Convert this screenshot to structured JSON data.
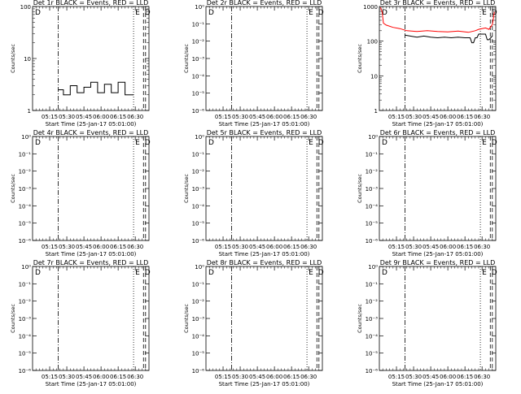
{
  "panels": [
    {
      "title": "Det 1r BLACK = Events, RED = LLD",
      "ylabel": "Counts/sec",
      "xlabel": "Start Time (25-Jan-17 05:01:00)",
      "y_tick_labels": [
        "1",
        "10",
        "100"
      ]
    },
    {
      "title": "Det 2r BLACK = Events, RED = LLD",
      "ylabel": "Counts/sec",
      "xlabel": "Start Time (25-Jan-17 05:01:00)",
      "y_tick_labels": [
        "10⁰",
        "10⁻¹",
        "10⁻²",
        "10⁻³",
        "10⁻⁴",
        "10⁻⁵",
        "10⁻⁶"
      ]
    },
    {
      "title": "Det 3r BLACK = Events, RED = LLD",
      "ylabel": "Counts/sec",
      "xlabel": "Start Time (25-Jan-17 05:01:00)",
      "y_tick_labels": [
        "1",
        "10",
        "100",
        "1000"
      ]
    },
    {
      "title": "Det 4r BLACK = Events, RED = LLD",
      "ylabel": "Counts/sec",
      "xlabel": "Start Time (25-Jan-17 05:01:00)",
      "y_tick_labels": [
        "10⁰",
        "10⁻¹",
        "10⁻²",
        "10⁻³",
        "10⁻⁴",
        "10⁻⁵",
        "10⁻⁶"
      ]
    },
    {
      "title": "Det 5r BLACK = Events, RED = LLD",
      "ylabel": "Counts/sec",
      "xlabel": "Start Time (25-Jan-17 05:01:00)",
      "y_tick_labels": [
        "10⁰",
        "10⁻¹",
        "10⁻²",
        "10⁻³",
        "10⁻⁴",
        "10⁻⁵",
        "10⁻⁶"
      ]
    },
    {
      "title": "Det 6r BLACK = Events, RED = LLD",
      "ylabel": "Counts/sec",
      "xlabel": "Start Time (25-Jan-17 05:01:00)",
      "y_tick_labels": [
        "10⁰",
        "10⁻¹",
        "10⁻²",
        "10⁻³",
        "10⁻⁴",
        "10⁻⁵",
        "10⁻⁶"
      ]
    },
    {
      "title": "Det 7r BLACK = Events, RED = LLD",
      "ylabel": "Counts/sec",
      "xlabel": "Start Time (25-Jan-17 05:01:00)",
      "y_tick_labels": [
        "10⁰",
        "10⁻¹",
        "10⁻²",
        "10⁻³",
        "10⁻⁴",
        "10⁻⁵",
        "10⁻⁶"
      ]
    },
    {
      "title": "Det 8r BLACK = Events, RED = LLD",
      "ylabel": "Counts/sec",
      "xlabel": "Start Time (25-Jan-17 05:01:00)",
      "y_tick_labels": [
        "10⁰",
        "10⁻¹",
        "10⁻²",
        "10⁻³",
        "10⁻⁴",
        "10⁻⁵",
        "10⁻⁶"
      ]
    },
    {
      "title": "Det 9r BLACK = Events, RED = LLD",
      "ylabel": "Counts/sec",
      "xlabel": "Start Time (25-Jan-17 05:01:00)",
      "y_tick_labels": [
        "10⁰",
        "10⁻¹",
        "10⁻²",
        "10⁻³",
        "10⁻⁴",
        "10⁻⁵",
        "10⁻⁶"
      ]
    }
  ],
  "x_tick_labels": [
    "05:15",
    "05:30",
    "05:45",
    "06:00",
    "06:15",
    "06:30"
  ],
  "markers": {
    "left": "D",
    "mid": "E",
    "right": "D"
  },
  "colors": {
    "events": "#000000",
    "lld": "#ff0000"
  },
  "chart_data": [
    {
      "type": "line",
      "title": "Det 1r BLACK = Events, RED = LLD",
      "xlabel": "Start Time (25-Jan-17 05:01:00)",
      "ylabel": "Counts/sec",
      "x_range_min": [
        5.0,
        39.0
      ],
      "y_scale": "log",
      "ylim": [
        1,
        100
      ],
      "vlines_min": [
        {
          "x": 12.5,
          "style": "dash-dot"
        },
        {
          "x": 34.5,
          "style": "dotted"
        },
        {
          "x": 38.0,
          "style": "dashed"
        }
      ],
      "series": [
        {
          "color": "black",
          "x": [
            12.5,
            14,
            14,
            16,
            16,
            18,
            18,
            20,
            20,
            22,
            22,
            24,
            24,
            26,
            26,
            28,
            28,
            30,
            30,
            32,
            32,
            34.5
          ],
          "y": [
            2.5,
            2.5,
            2.0,
            2.0,
            3.0,
            3.0,
            2.2,
            2.2,
            2.8,
            2.8,
            3.5,
            3.5,
            2.2,
            2.2,
            3.2,
            3.2,
            2.2,
            2.2,
            3.5,
            3.5,
            2.0,
            2.0
          ]
        }
      ]
    },
    {
      "type": "line",
      "title": "Det 2r BLACK = Events, RED = LLD",
      "xlabel": "Start Time (25-Jan-17 05:01:00)",
      "ylabel": "Counts/sec",
      "x_range_min": [
        5.0,
        39.0
      ],
      "y_scale": "log",
      "ylim": [
        1e-06,
        1
      ],
      "series": []
    },
    {
      "type": "line",
      "title": "Det 3r BLACK = Events, RED = LLD",
      "xlabel": "Start Time (25-Jan-17 05:01:00)",
      "ylabel": "Counts/sec",
      "x_range_min": [
        5.0,
        39.0
      ],
      "y_scale": "log",
      "ylim": [
        1,
        1000
      ],
      "series": [
        {
          "color": "red",
          "x": [
            5.3,
            5.8,
            6.2,
            7,
            9,
            11,
            13,
            16,
            19,
            22,
            25,
            28,
            31,
            33,
            34,
            35,
            36,
            37,
            38,
            38.6
          ],
          "y": [
            950,
            700,
            330,
            290,
            250,
            230,
            200,
            190,
            200,
            190,
            185,
            195,
            180,
            200,
            220,
            230,
            240,
            220,
            300,
            700
          ]
        },
        {
          "color": "black",
          "x": [
            12.5,
            14,
            16,
            18,
            20,
            22,
            24,
            26,
            28,
            30,
            31.5,
            32,
            32.5,
            33,
            33.5,
            34,
            35,
            36,
            36.5,
            37,
            38
          ],
          "y": [
            150,
            140,
            130,
            140,
            130,
            125,
            130,
            125,
            130,
            125,
            125,
            90,
            90,
            125,
            125,
            160,
            160,
            160,
            110,
            110,
            140
          ]
        }
      ]
    },
    {
      "type": "line",
      "title": "Det 4r BLACK = Events, RED = LLD",
      "xlabel": "Start Time (25-Jan-17 05:01:00)",
      "ylabel": "Counts/sec",
      "x_range_min": [
        5.0,
        39.0
      ],
      "y_scale": "log",
      "ylim": [
        1e-06,
        1
      ],
      "series": []
    },
    {
      "type": "line",
      "title": "Det 5r BLACK = Events, RED = LLD",
      "xlabel": "Start Time (25-Jan-17 05:01:00)",
      "ylabel": "Counts/sec",
      "x_range_min": [
        5.0,
        39.0
      ],
      "y_scale": "log",
      "ylim": [
        1e-06,
        1
      ],
      "series": []
    },
    {
      "type": "line",
      "title": "Det 6r BLACK = Events, RED = LLD",
      "xlabel": "Start Time (25-Jan-17 05:01:00)",
      "ylabel": "Counts/sec",
      "x_range_min": [
        5.0,
        39.0
      ],
      "y_scale": "log",
      "ylim": [
        1e-06,
        1
      ],
      "series": []
    },
    {
      "type": "line",
      "title": "Det 7r BLACK = Events, RED = LLD",
      "xlabel": "Start Time (25-Jan-17 05:01:00)",
      "ylabel": "Counts/sec",
      "x_range_min": [
        5.0,
        39.0
      ],
      "y_scale": "log",
      "ylim": [
        1e-06,
        1
      ],
      "series": []
    },
    {
      "type": "line",
      "title": "Det 8r BLACK = Events, RED = LLD",
      "xlabel": "Start Time (25-Jan-17 05:01:00)",
      "ylabel": "Counts/sec",
      "x_range_min": [
        5.0,
        39.0
      ],
      "y_scale": "log",
      "ylim": [
        1e-06,
        1
      ],
      "series": []
    },
    {
      "type": "line",
      "title": "Det 9r BLACK = Events, RED = LLD",
      "xlabel": "Start Time (25-Jan-17 05:01:00)",
      "ylabel": "Counts/sec",
      "x_range_min": [
        5.0,
        39.0
      ],
      "y_scale": "log",
      "ylim": [
        1e-06,
        1
      ],
      "series": []
    }
  ]
}
